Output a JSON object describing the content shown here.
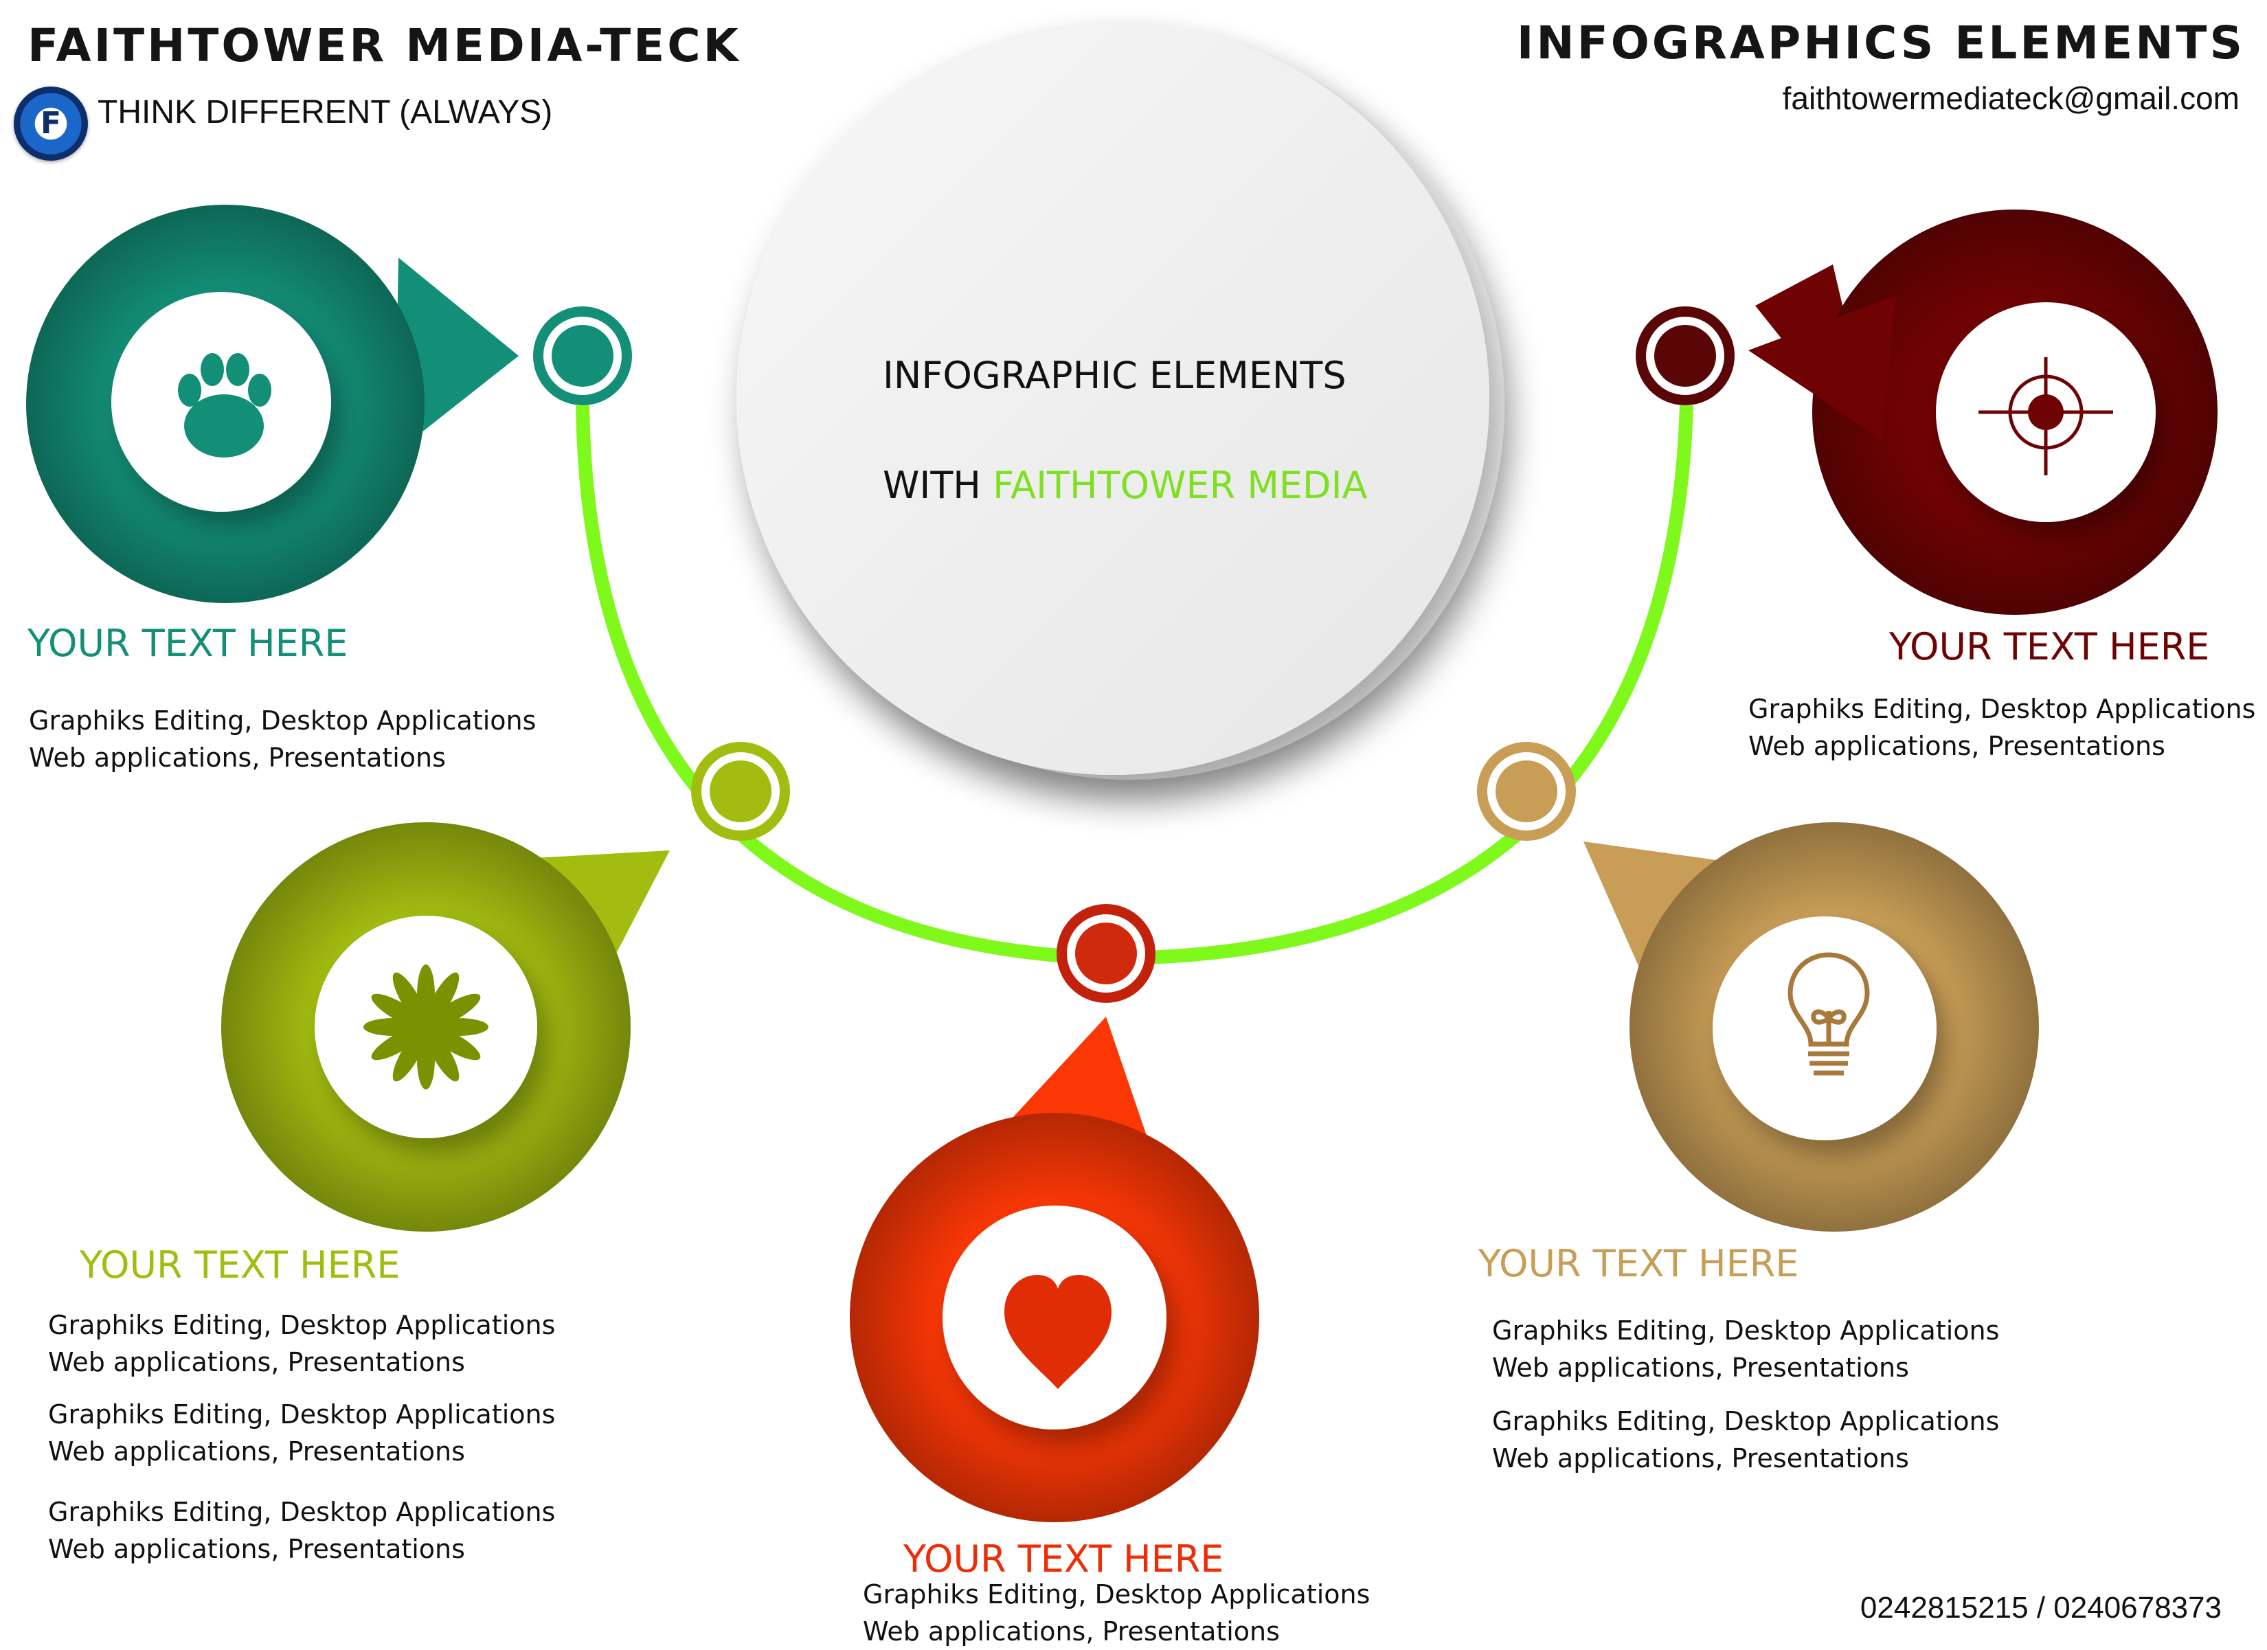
{
  "header": {
    "brand": "FAITHTOWER MEDIA-TECK",
    "tagline": "THINK DIFFERENT (ALWAYS)",
    "logo_text": "F",
    "title": "INFOGRAPHICS ELEMENTS",
    "email": "faithtowermediateck@gmail.com"
  },
  "center": {
    "line1": "INFOGRAPHIC ELEMENTS",
    "line2_prefix": "WITH ",
    "line2_accent": "FAITHTOWER MEDIA"
  },
  "colors": {
    "teal": "#138f77",
    "olive": "#a2bc10",
    "red": "#fb3706",
    "tan": "#c89d56",
    "maroon": "#6f0202",
    "arc": "#7ef91b"
  },
  "items": [
    {
      "id": "teal",
      "icon": "paw-icon",
      "heading": "YOUR TEXT HERE",
      "lines": [
        "Graphiks Editing, Desktop Applications",
        "Web applications, Presentations"
      ]
    },
    {
      "id": "olive",
      "icon": "flower-icon",
      "heading": "YOUR TEXT HERE",
      "lines": [
        "Graphiks Editing, Desktop Applications",
        "Web applications, Presentations",
        "Graphiks Editing, Desktop Applications",
        "Web applications, Presentations",
        "Graphiks Editing, Desktop Applications",
        "Web applications, Presentations"
      ]
    },
    {
      "id": "red",
      "icon": "heart-icon",
      "heading": "YOUR TEXT HERE",
      "lines": [
        "Graphiks Editing, Desktop Applications",
        "Web applications, Presentations"
      ]
    },
    {
      "id": "tan",
      "icon": "lightbulb-icon",
      "heading": "YOUR TEXT HERE",
      "lines": [
        "Graphiks Editing, Desktop Applications",
        "Web applications, Presentations",
        "Graphiks Editing, Desktop Applications",
        "Web applications, Presentations"
      ]
    },
    {
      "id": "maroon",
      "icon": "crosshair-icon",
      "heading": "YOUR TEXT HERE",
      "lines": [
        "Graphiks Editing, Desktop Applications",
        "Web applications, Presentations"
      ]
    }
  ],
  "footer": {
    "phone": "0242815215 / 0240678373"
  }
}
